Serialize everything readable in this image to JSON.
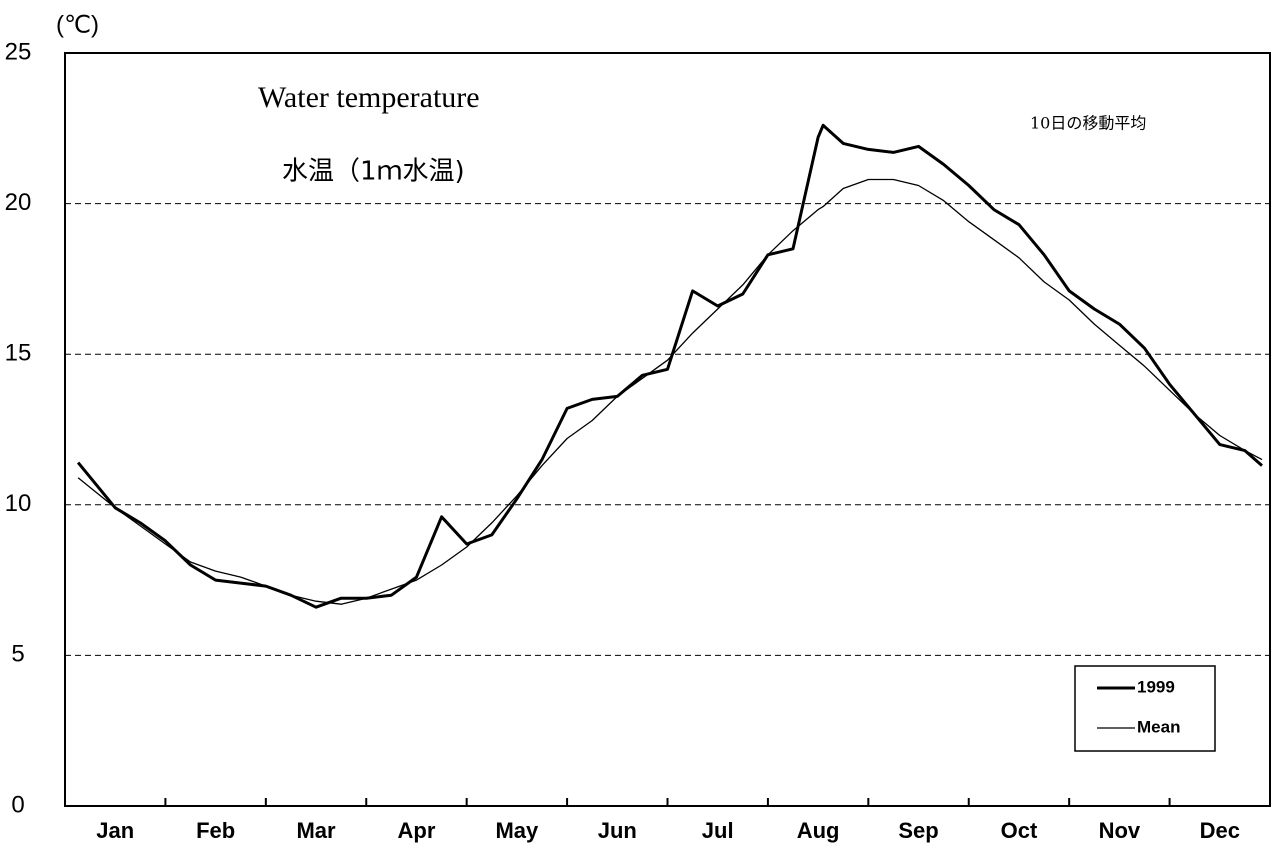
{
  "chart_data": {
    "type": "line",
    "title": "Water temperature",
    "subtitle": "水温（1ｍ水温)",
    "annotation": "10日の移動平均",
    "y_label": "(℃)",
    "categories": [
      "Jan",
      "Feb",
      "Mar",
      "Apr",
      "May",
      "Jun",
      "Jul",
      "Aug",
      "Sep",
      "Oct",
      "Nov",
      "Dec"
    ],
    "x": [
      0.13,
      0.5,
      0.75,
      1.0,
      1.25,
      1.5,
      1.75,
      2.0,
      2.25,
      2.5,
      2.75,
      3.0,
      3.25,
      3.5,
      3.75,
      4.0,
      4.25,
      4.5,
      4.75,
      5.0,
      5.25,
      5.5,
      5.75,
      6.0,
      6.25,
      6.5,
      6.75,
      7.0,
      7.25,
      7.5,
      7.55,
      7.75,
      8.0,
      8.25,
      8.5,
      8.75,
      9.0,
      9.25,
      9.5,
      9.75,
      10.0,
      10.25,
      10.5,
      10.75,
      11.0,
      11.25,
      11.5,
      11.75,
      11.92
    ],
    "xlim": [
      0,
      12
    ],
    "series": [
      {
        "name": "1999",
        "color": "#000000",
        "width": 3,
        "values": [
          11.4,
          9.9,
          9.4,
          8.8,
          8.0,
          7.5,
          7.4,
          7.3,
          7.0,
          6.6,
          6.9,
          6.9,
          7.0,
          7.6,
          9.6,
          8.7,
          9.0,
          10.2,
          11.5,
          13.2,
          13.5,
          13.6,
          14.3,
          14.5,
          17.1,
          16.6,
          17.0,
          18.3,
          18.5,
          22.2,
          22.6,
          22.0,
          21.8,
          21.7,
          21.9,
          21.3,
          20.6,
          19.8,
          19.3,
          18.3,
          17.1,
          16.5,
          16.0,
          15.2,
          14.0,
          13.0,
          12.0,
          11.8,
          11.3
        ]
      },
      {
        "name": "Mean",
        "color": "#000000",
        "width": 1.3,
        "values": [
          10.9,
          9.9,
          9.3,
          8.7,
          8.1,
          7.8,
          7.6,
          7.3,
          7.0,
          6.8,
          6.7,
          6.9,
          7.2,
          7.5,
          8.0,
          8.6,
          9.4,
          10.3,
          11.3,
          12.2,
          12.8,
          13.6,
          14.2,
          14.8,
          15.7,
          16.5,
          17.3,
          18.3,
          19.1,
          19.8,
          19.9,
          20.5,
          20.8,
          20.8,
          20.6,
          20.1,
          19.4,
          18.8,
          18.2,
          17.4,
          16.8,
          16.0,
          15.3,
          14.6,
          13.8,
          13.0,
          12.3,
          11.8,
          11.5
        ]
      }
    ],
    "ylim": [
      0,
      25
    ],
    "yticks": [
      0,
      5,
      10,
      15,
      20,
      25
    ],
    "grid": true,
    "legend": "lower right"
  }
}
